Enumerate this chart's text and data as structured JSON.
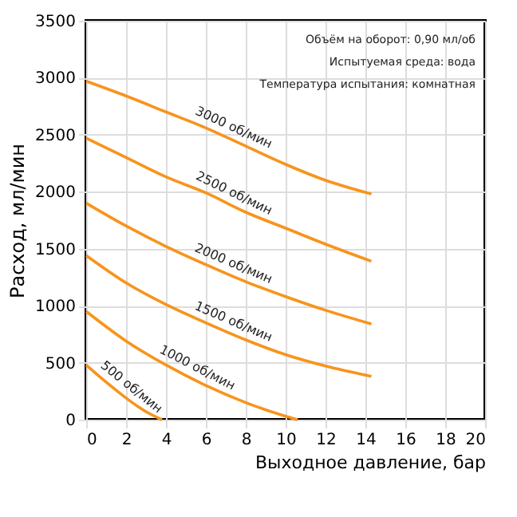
{
  "chart_data": {
    "type": "line",
    "xlabel": "Выходное давление, бар",
    "ylabel": "Расход, мл/мин",
    "xlim": [
      0,
      20
    ],
    "xticks": [
      0,
      2,
      4,
      6,
      8,
      10,
      12,
      14,
      16,
      18,
      20
    ],
    "ylim": [
      0,
      3500
    ],
    "yticks": [
      0,
      500,
      1000,
      1500,
      2000,
      2500,
      3000,
      3500
    ],
    "grid": true,
    "legend": false,
    "marker": "none",
    "line_style": "solid",
    "annotations": [
      "Объём на оборот: 0,90 мл/об",
      "Испытуемая среда: вода",
      "Температура испытания: комнатная"
    ],
    "series": [
      {
        "name": "3000 об/мин",
        "color": "#f7941d",
        "x": [
          0,
          2,
          4,
          6,
          8,
          10,
          12,
          14.3
        ],
        "values": [
          2970,
          2840,
          2700,
          2560,
          2400,
          2240,
          2100,
          1980
        ]
      },
      {
        "name": "2500 об/мин",
        "color": "#f7941d",
        "x": [
          0,
          2,
          4,
          6,
          8,
          10,
          12,
          14.3
        ],
        "values": [
          2470,
          2300,
          2130,
          1990,
          1820,
          1680,
          1540,
          1390
        ]
      },
      {
        "name": "2000 об/мин",
        "color": "#f7941d",
        "x": [
          0,
          2,
          4,
          6,
          8,
          10,
          12,
          14.3
        ],
        "values": [
          1900,
          1700,
          1520,
          1360,
          1210,
          1080,
          960,
          840
        ]
      },
      {
        "name": "1500 об/мин",
        "color": "#f7941d",
        "x": [
          0,
          2,
          4,
          6,
          8,
          10,
          12,
          14.3
        ],
        "values": [
          1440,
          1200,
          1010,
          850,
          700,
          570,
          470,
          380
        ]
      },
      {
        "name": "1000 об/мин",
        "color": "#f7941d",
        "x": [
          0,
          2,
          4,
          6,
          8,
          10,
          10.6
        ],
        "values": [
          950,
          690,
          480,
          300,
          150,
          30,
          0
        ]
      },
      {
        "name": "500 об/мин",
        "color": "#f7941d",
        "x": [
          0,
          1,
          2,
          3,
          3.8
        ],
        "values": [
          480,
          330,
          190,
          70,
          0
        ]
      }
    ]
  }
}
